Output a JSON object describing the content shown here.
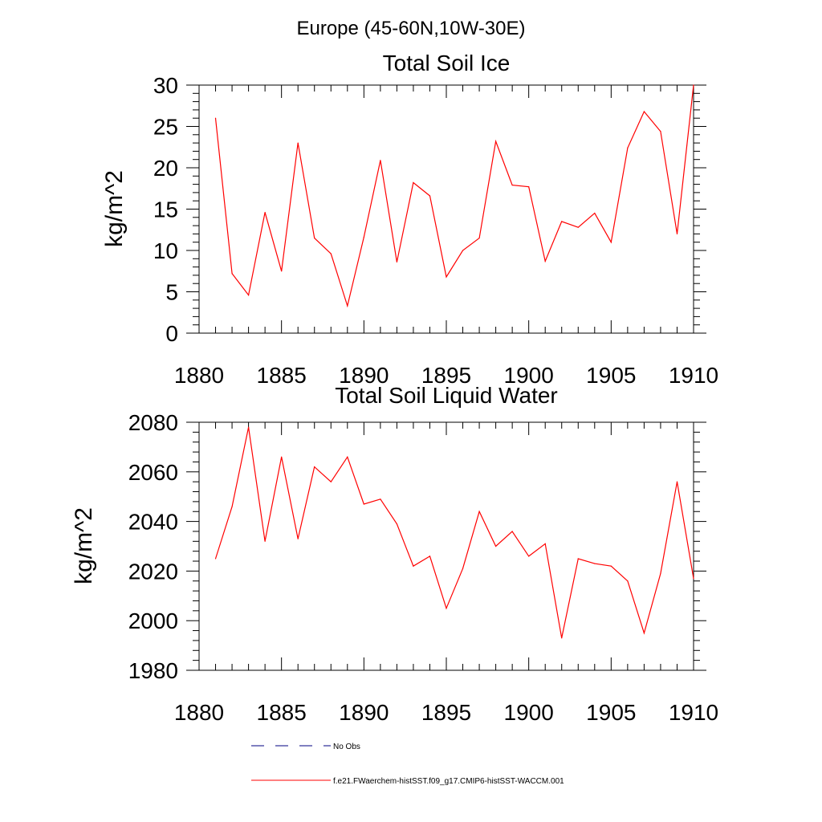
{
  "figure": {
    "title": "Europe (45-60N,10W-30E)"
  },
  "legend": {
    "items": [
      {
        "label": "No Obs",
        "color": "#000080",
        "style": "dashed"
      },
      {
        "label": "f.e21.FWaerchem-histSST.f09_g17.CMIP6-histSST-WACCM.001",
        "color": "#ff0000",
        "style": "solid"
      }
    ]
  },
  "chart_data": [
    {
      "type": "line",
      "title": "Total Soil Ice",
      "xlabel": "",
      "ylabel": "kg/m^2",
      "xlim": [
        1880,
        1910
      ],
      "ylim": [
        0,
        30
      ],
      "xticks": [
        "1880",
        "1885",
        "1890",
        "1895",
        "1900",
        "1905",
        "1910"
      ],
      "yticks": [
        "0",
        "5",
        "10",
        "15",
        "20",
        "25",
        "30"
      ],
      "grid": false,
      "x": [
        1881,
        1882,
        1883,
        1884,
        1885,
        1886,
        1887,
        1888,
        1889,
        1890,
        1891,
        1892,
        1893,
        1894,
        1895,
        1896,
        1897,
        1898,
        1899,
        1900,
        1901,
        1902,
        1903,
        1904,
        1905,
        1906,
        1907,
        1908,
        1909,
        1910
      ],
      "series": [
        {
          "name": "f.e21.FWaerchem-histSST.f09_g17.CMIP6-histSST-WACCM.001",
          "color": "#ff0000",
          "values": [
            26.0,
            7.2,
            4.6,
            14.6,
            7.5,
            23.0,
            11.5,
            9.6,
            3.3,
            11.6,
            20.9,
            8.6,
            18.2,
            16.6,
            6.8,
            10.0,
            11.5,
            23.2,
            17.9,
            17.7,
            8.7,
            13.5,
            12.8,
            14.5,
            11.0,
            22.4,
            26.8,
            24.4,
            12.0,
            30.0
          ]
        }
      ]
    },
    {
      "type": "line",
      "title": "Total Soil Liquid Water",
      "xlabel": "",
      "ylabel": "kg/m^2",
      "xlim": [
        1880,
        1910
      ],
      "ylim": [
        1980,
        2080
      ],
      "xticks": [
        "1880",
        "1885",
        "1890",
        "1895",
        "1900",
        "1905",
        "1910"
      ],
      "yticks": [
        "1980",
        "2000",
        "2020",
        "2040",
        "2060",
        "2080"
      ],
      "grid": false,
      "x": [
        1881,
        1882,
        1883,
        1884,
        1885,
        1886,
        1887,
        1888,
        1889,
        1890,
        1891,
        1892,
        1893,
        1894,
        1895,
        1896,
        1897,
        1898,
        1899,
        1900,
        1901,
        1902,
        1903,
        1904,
        1905,
        1906,
        1907,
        1908,
        1909,
        1910
      ],
      "series": [
        {
          "name": "f.e21.FWaerchem-histSST.f09_g17.CMIP6-histSST-WACCM.001",
          "color": "#ff0000",
          "values": [
            2025,
            2046,
            2078,
            2032,
            2066,
            2033,
            2062,
            2056,
            2066,
            2047,
            2049,
            2039,
            2022,
            2026,
            2005,
            2021,
            2044,
            2030,
            2036,
            2026,
            2031,
            1993,
            2025,
            2023,
            2022,
            2016,
            1995,
            2019,
            2056,
            2017
          ]
        }
      ]
    }
  ]
}
